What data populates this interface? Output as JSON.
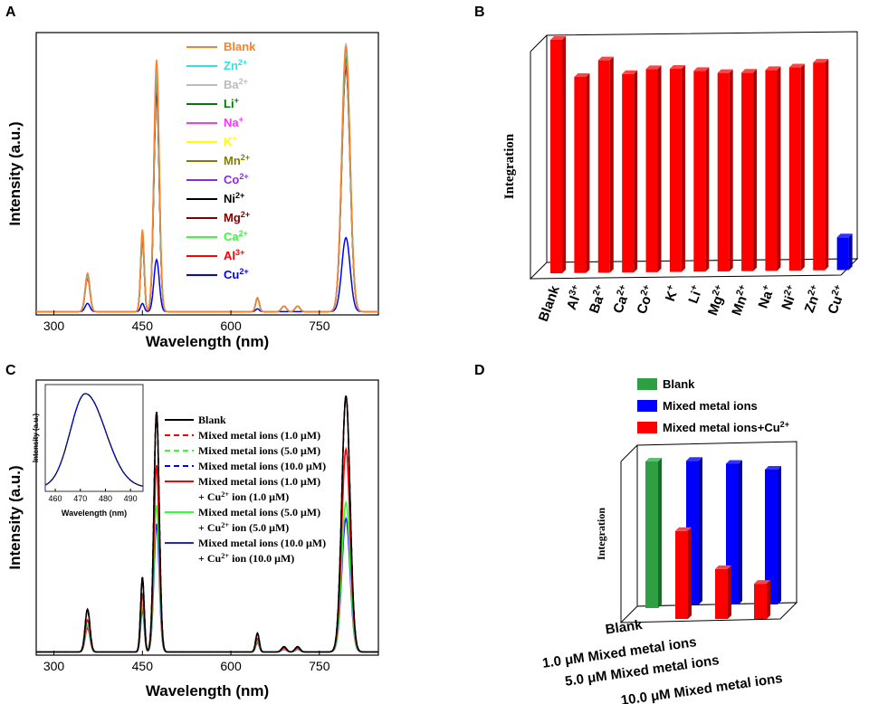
{
  "chart_data": [
    {
      "panel": "A",
      "type": "line",
      "xlabel": "Wavelength (nm)",
      "ylabel": "Intensity (a.u.)",
      "xlim": [
        270,
        850
      ],
      "xticks": [
        300,
        450,
        600,
        750
      ],
      "peak_positions_nm": [
        357,
        450,
        474,
        645,
        690,
        713,
        795
      ],
      "series": [
        {
          "name": "Blank",
          "color": "#FF7F27",
          "peaks": [
            0.14,
            0.3,
            0.92,
            0.05,
            0.02,
            0.02,
            0.97
          ]
        },
        {
          "name": "Zn",
          "sup": "2+",
          "color": "#33E0E0",
          "peaks": [
            0.13,
            0.29,
            0.89,
            0.05,
            0.02,
            0.02,
            0.95
          ]
        },
        {
          "name": "Ba",
          "sup": "2+",
          "color": "#BBBBBB",
          "peaks": [
            0.13,
            0.29,
            0.88,
            0.05,
            0.02,
            0.02,
            0.98
          ]
        },
        {
          "name": "Li",
          "sup": "+",
          "color": "#007A00",
          "peaks": [
            0.13,
            0.28,
            0.87,
            0.05,
            0.02,
            0.02,
            0.93
          ]
        },
        {
          "name": "Na",
          "sup": "+",
          "color": "#FF33FF",
          "peaks": [
            0.13,
            0.28,
            0.86,
            0.05,
            0.02,
            0.02,
            0.93
          ]
        },
        {
          "name": "K",
          "sup": "+",
          "color": "#FFFF00",
          "peaks": [
            0.13,
            0.28,
            0.86,
            0.05,
            0.02,
            0.02,
            0.92
          ]
        },
        {
          "name": "Mn",
          "sup": "2+",
          "color": "#808000",
          "peaks": [
            0.13,
            0.28,
            0.85,
            0.05,
            0.02,
            0.02,
            0.92
          ]
        },
        {
          "name": "Co",
          "sup": "2+",
          "color": "#8A2BE2",
          "peaks": [
            0.13,
            0.28,
            0.84,
            0.05,
            0.02,
            0.02,
            0.91
          ]
        },
        {
          "name": "Ni",
          "sup": "2+",
          "color": "#000000",
          "peaks": [
            0.13,
            0.28,
            0.82,
            0.05,
            0.02,
            0.02,
            0.96
          ]
        },
        {
          "name": "Mg",
          "sup": "2+",
          "color": "#800000",
          "peaks": [
            0.13,
            0.27,
            0.81,
            0.05,
            0.02,
            0.02,
            0.9
          ]
        },
        {
          "name": "Ca",
          "sup": "2+",
          "color": "#33FF33",
          "peaks": [
            0.13,
            0.27,
            0.8,
            0.05,
            0.02,
            0.02,
            0.91
          ]
        },
        {
          "name": "Al",
          "sup": "3+",
          "color": "#FF0000",
          "peaks": [
            0.12,
            0.26,
            0.79,
            0.05,
            0.02,
            0.02,
            0.89
          ]
        },
        {
          "name": "Cu",
          "sup": "2+",
          "color": "#0000FF",
          "peaks": [
            0.03,
            0.03,
            0.19,
            0.01,
            0.0,
            0.0,
            0.27
          ]
        }
      ]
    },
    {
      "panel": "B",
      "type": "bar",
      "ylabel": "Integration",
      "categories": [
        {
          "name": "Blank",
          "sup": ""
        },
        {
          "name": "Al",
          "sup": "3+"
        },
        {
          "name": "Ba",
          "sup": "2+"
        },
        {
          "name": "Ca",
          "sup": "2+"
        },
        {
          "name": "Co",
          "sup": "2+"
        },
        {
          "name": "K",
          "sup": "+"
        },
        {
          "name": "Li",
          "sup": "+"
        },
        {
          "name": "Mg",
          "sup": "2+"
        },
        {
          "name": "Mn",
          "sup": "2+"
        },
        {
          "name": "Na",
          "sup": "+"
        },
        {
          "name": "Ni",
          "sup": "2+"
        },
        {
          "name": "Zn",
          "sup": "2+"
        },
        {
          "name": "Cu",
          "sup": "2+"
        }
      ],
      "values": [
        100,
        84,
        91,
        85,
        87,
        87,
        86,
        85,
        85,
        86,
        87,
        89,
        14
      ],
      "colors": [
        "#FF0000",
        "#FF0000",
        "#FF0000",
        "#FF0000",
        "#FF0000",
        "#FF0000",
        "#FF0000",
        "#FF0000",
        "#FF0000",
        "#FF0000",
        "#FF0000",
        "#FF0000",
        "#0000FF"
      ]
    },
    {
      "panel": "C",
      "type": "line",
      "xlabel": "Wavelength (nm)",
      "ylabel": "Intensity (a.u.)",
      "xlim": [
        270,
        850
      ],
      "xticks": [
        300,
        450,
        600,
        750
      ],
      "peak_positions_nm": [
        357,
        450,
        474,
        645,
        690,
        713,
        795
      ],
      "series": [
        {
          "name": "Blank",
          "color": "#000000",
          "dash": "solid",
          "peaks": [
            0.16,
            0.28,
            0.9,
            0.07,
            0.02,
            0.02,
            0.96
          ]
        },
        {
          "name": "Mixed metal ions (1.0 μM)",
          "color": "#FF0000",
          "dash": "dash",
          "peaks": [
            0.16,
            0.28,
            0.9,
            0.07,
            0.02,
            0.02,
            0.96
          ]
        },
        {
          "name": "Mixed metal ions (5.0 μM)",
          "color": "#33FF33",
          "dash": "dash",
          "peaks": [
            0.16,
            0.28,
            0.9,
            0.07,
            0.02,
            0.02,
            0.96
          ]
        },
        {
          "name": "Mixed metal ions (10.0 μM)",
          "color": "#0000FF",
          "dash": "dash",
          "peaks": [
            0.16,
            0.28,
            0.9,
            0.07,
            0.02,
            0.02,
            0.96
          ]
        },
        {
          "name": "Mixed metal ions (1.0 μM)",
          "name2": "+ Cu",
          "sup": "2+",
          "name3": " ion (1.0 μM)",
          "color": "#FF0000",
          "dash": "solid",
          "peaks": [
            0.12,
            0.22,
            0.7,
            0.05,
            0.015,
            0.015,
            0.76
          ]
        },
        {
          "name": "Mixed metal ions (5.0 μM)",
          "name2": "+ Cu",
          "sup": "2+",
          "name3": " ion (5.0 μM)",
          "color": "#33FF33",
          "dash": "solid",
          "peaks": [
            0.1,
            0.18,
            0.55,
            0.04,
            0.012,
            0.012,
            0.56
          ]
        },
        {
          "name": "Mixed metal ions (10.0 μM)",
          "name2": "+ Cu",
          "sup": "2+",
          "name3": " ion (10.0 μM)",
          "color": "#1E1EFF",
          "dash": "solid",
          "peaks": [
            0.09,
            0.16,
            0.48,
            0.035,
            0.01,
            0.01,
            0.5
          ]
        }
      ],
      "inset": {
        "xlabel": "Wavelength (nm)",
        "ylabel": "Intensity (a.u.)",
        "xlim": [
          456,
          495
        ],
        "xticks": [
          460,
          470,
          480,
          490
        ],
        "peak_nm": 472
      }
    },
    {
      "panel": "D",
      "type": "bar",
      "ylabel": "Integration",
      "legend": [
        {
          "label": "Blank",
          "color": "#2EA043"
        },
        {
          "label": "Mixed metal ions",
          "color": "#0000FF"
        },
        {
          "label": "Mixed metal ions+Cu",
          "sup": "2+",
          "color": "#FF0000"
        }
      ],
      "categories": [
        "Blank",
        "1.0 μM Mixed metal ions",
        "5.0 μM Mixed metal ions",
        "10.0 μM Mixed metal ions"
      ],
      "series": [
        {
          "name": "Blank",
          "color": "#2EA043",
          "values": [
            100,
            null,
            null,
            null
          ]
        },
        {
          "name": "Mixed metal ions",
          "color": "#0000FF",
          "values": [
            null,
            98,
            96,
            92
          ]
        },
        {
          "name": "Mixed metal ions+Cu2+",
          "color": "#FF0000",
          "values": [
            null,
            60,
            34,
            24
          ]
        }
      ]
    }
  ],
  "panel_labels": [
    "A",
    "B",
    "C",
    "D"
  ]
}
